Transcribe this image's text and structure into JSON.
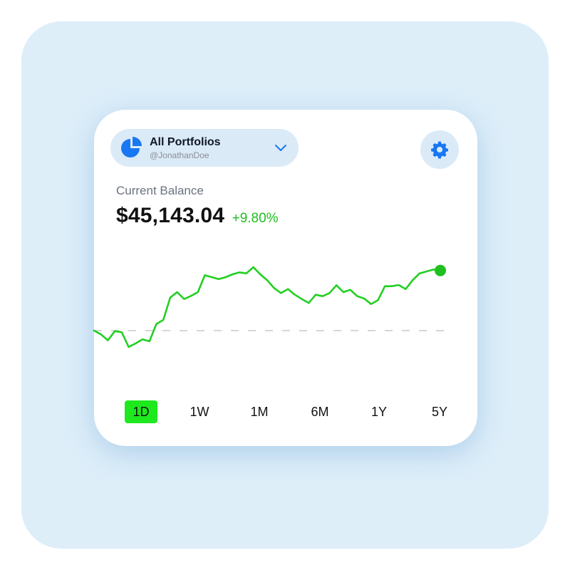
{
  "portfolio_selector": {
    "title": "All Portfolios",
    "username": "@JonathanDoe",
    "icon": "pie-chart-icon",
    "dropdown_icon": "chevron-down-icon"
  },
  "settings": {
    "icon": "gear-icon"
  },
  "balance": {
    "label": "Current Balance",
    "amount": "$45,143.04",
    "change": "+9.80%"
  },
  "colors": {
    "accent": "#1877F2",
    "positive": "#1FBF1F",
    "line": "#22D022",
    "active_range": "#1EE81E",
    "pill_bg": "#DBEAF7"
  },
  "time_ranges": [
    {
      "label": "1D",
      "active": true
    },
    {
      "label": "1W",
      "active": false
    },
    {
      "label": "1M",
      "active": false
    },
    {
      "label": "6M",
      "active": false
    },
    {
      "label": "1Y",
      "active": false
    },
    {
      "label": "5Y",
      "active": false
    }
  ],
  "chart_data": {
    "type": "line",
    "baseline": 100,
    "ylim": [
      82,
      130
    ],
    "series": [
      {
        "values": [
          100,
          98.4,
          95.9,
          99.8,
          99.3,
          93.1,
          94.6,
          96.3,
          95.5,
          102.8,
          104.5,
          113.9,
          116.2,
          113.3,
          114.6,
          116.2,
          123.3,
          122.5,
          121.7,
          122.5,
          123.7,
          124.5,
          124.1,
          126.7,
          123.7,
          121.2,
          117.9,
          115.8,
          117.5,
          115.1,
          113.3,
          111.6,
          115.1,
          114.5,
          115.8,
          119.1,
          116.2,
          117.2,
          114.5,
          113.5,
          111.2,
          112.8,
          118.7,
          118.7,
          119.2,
          117.5,
          121.2,
          124.1,
          124.9,
          125.7,
          125.3
        ]
      }
    ]
  }
}
